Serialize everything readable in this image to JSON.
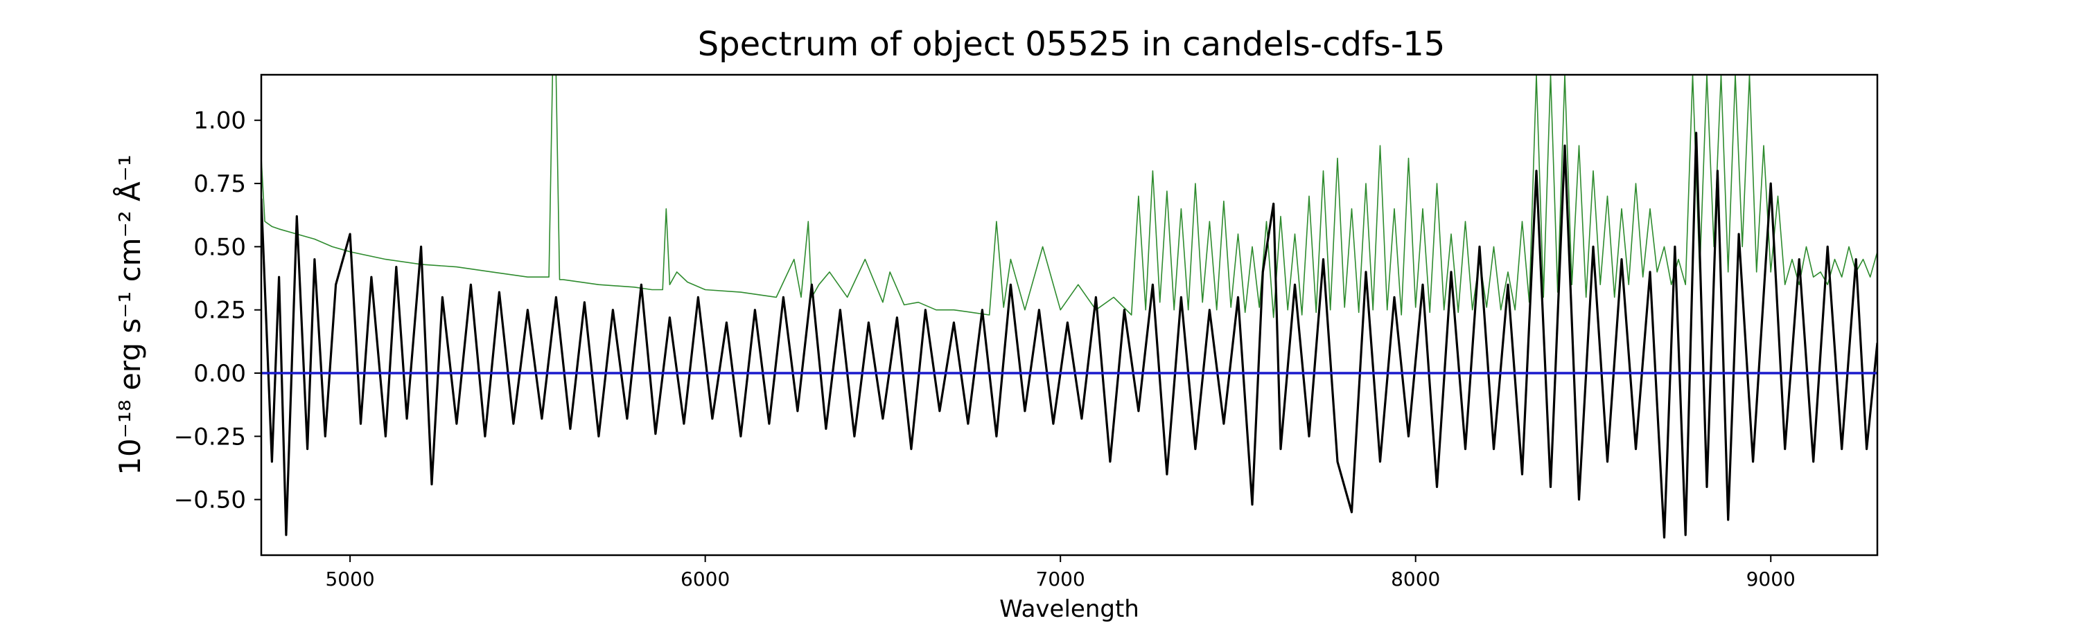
{
  "chart_data": {
    "type": "line",
    "title": "Spectrum of object 05525 in candels-cdfs-15",
    "xlabel": "Wavelength",
    "ylabel": "10⁻¹⁸ erg s⁻¹ cm⁻² Å⁻¹",
    "xlim": [
      4750,
      9300
    ],
    "ylim": [
      -0.72,
      1.18
    ],
    "xticks": [
      5000,
      6000,
      7000,
      8000,
      9000
    ],
    "xtick_labels": [
      "5000",
      "6000",
      "7000",
      "8000",
      "9000"
    ],
    "yticks": [
      -0.5,
      -0.25,
      0.0,
      0.25,
      0.5,
      0.75,
      1.0
    ],
    "ytick_labels": [
      "−0.50",
      "−0.25",
      "0.00",
      "0.25",
      "0.50",
      "0.75",
      "1.00"
    ],
    "grid": false,
    "legend": "none",
    "series": [
      {
        "role": "spectrum",
        "color": "#000000",
        "x": [
          4750,
          4780,
          4800,
          4820,
          4850,
          4880,
          4900,
          4930,
          4960,
          5000,
          5030,
          5060,
          5100,
          5130,
          5160,
          5200,
          5230,
          5260,
          5300,
          5340,
          5380,
          5420,
          5460,
          5500,
          5540,
          5580,
          5620,
          5660,
          5700,
          5740,
          5780,
          5820,
          5860,
          5900,
          5940,
          5980,
          6020,
          6060,
          6100,
          6140,
          6180,
          6220,
          6260,
          6300,
          6340,
          6380,
          6420,
          6460,
          6500,
          6540,
          6580,
          6620,
          6660,
          6700,
          6740,
          6780,
          6820,
          6860,
          6900,
          6940,
          6980,
          7020,
          7060,
          7100,
          7140,
          7180,
          7220,
          7260,
          7300,
          7340,
          7380,
          7420,
          7460,
          7500,
          7540,
          7570,
          7600,
          7620,
          7660,
          7700,
          7740,
          7780,
          7820,
          7860,
          7900,
          7940,
          7980,
          8020,
          8060,
          8100,
          8140,
          8180,
          8220,
          8260,
          8300,
          8340,
          8380,
          8420,
          8460,
          8500,
          8540,
          8580,
          8620,
          8660,
          8700,
          8730,
          8760,
          8790,
          8820,
          8850,
          8880,
          8910,
          8950,
          9000,
          9040,
          9080,
          9120,
          9160,
          9200,
          9240,
          9270,
          9300
        ],
        "y": [
          0.69,
          -0.35,
          0.38,
          -0.64,
          0.62,
          -0.3,
          0.45,
          -0.25,
          0.35,
          0.55,
          -0.2,
          0.38,
          -0.25,
          0.42,
          -0.18,
          0.5,
          -0.44,
          0.3,
          -0.2,
          0.35,
          -0.25,
          0.32,
          -0.2,
          0.25,
          -0.18,
          0.3,
          -0.22,
          0.28,
          -0.25,
          0.25,
          -0.18,
          0.35,
          -0.24,
          0.22,
          -0.2,
          0.3,
          -0.18,
          0.2,
          -0.25,
          0.25,
          -0.2,
          0.3,
          -0.15,
          0.35,
          -0.22,
          0.25,
          -0.25,
          0.2,
          -0.18,
          0.22,
          -0.3,
          0.25,
          -0.15,
          0.2,
          -0.2,
          0.25,
          -0.25,
          0.35,
          -0.15,
          0.25,
          -0.2,
          0.2,
          -0.18,
          0.3,
          -0.35,
          0.25,
          -0.15,
          0.35,
          -0.4,
          0.3,
          -0.3,
          0.25,
          -0.2,
          0.3,
          -0.52,
          0.4,
          0.67,
          -0.3,
          0.35,
          -0.25,
          0.45,
          -0.35,
          -0.55,
          0.4,
          -0.35,
          0.3,
          -0.25,
          0.35,
          -0.45,
          0.4,
          -0.3,
          0.5,
          -0.3,
          0.35,
          -0.4,
          0.8,
          -0.45,
          0.9,
          -0.5,
          0.5,
          -0.35,
          0.45,
          -0.3,
          0.4,
          -0.65,
          0.5,
          -0.64,
          0.95,
          -0.45,
          0.8,
          -0.58,
          0.55,
          -0.35,
          0.75,
          -0.3,
          0.45,
          -0.35,
          0.5,
          -0.3,
          0.45,
          -0.3,
          0.12
        ]
      },
      {
        "role": "model",
        "color": "#2e8b2e",
        "x": [
          4750,
          4760,
          4780,
          4800,
          4850,
          4900,
          4950,
          5000,
          5100,
          5200,
          5300,
          5400,
          5500,
          5560,
          5570,
          5580,
          5590,
          5600,
          5700,
          5800,
          5850,
          5880,
          5890,
          5900,
          5920,
          5950,
          6000,
          6100,
          6200,
          6250,
          6270,
          6290,
          6300,
          6320,
          6350,
          6400,
          6450,
          6500,
          6520,
          6560,
          6600,
          6650,
          6700,
          6750,
          6800,
          6820,
          6840,
          6860,
          6900,
          6950,
          7000,
          7050,
          7100,
          7150,
          7200,
          7220,
          7240,
          7260,
          7280,
          7300,
          7320,
          7340,
          7360,
          7380,
          7400,
          7420,
          7440,
          7460,
          7480,
          7500,
          7520,
          7540,
          7560,
          7580,
          7600,
          7620,
          7640,
          7660,
          7680,
          7700,
          7720,
          7740,
          7760,
          7780,
          7800,
          7820,
          7840,
          7860,
          7880,
          7900,
          7920,
          7940,
          7960,
          7980,
          8000,
          8020,
          8040,
          8060,
          8080,
          8100,
          8120,
          8140,
          8160,
          8180,
          8200,
          8220,
          8240,
          8260,
          8280,
          8300,
          8320,
          8340,
          8360,
          8380,
          8400,
          8420,
          8440,
          8460,
          8480,
          8500,
          8520,
          8540,
          8560,
          8580,
          8600,
          8620,
          8640,
          8660,
          8680,
          8700,
          8720,
          8740,
          8760,
          8780,
          8800,
          8820,
          8840,
          8860,
          8880,
          8900,
          8920,
          8940,
          8960,
          8980,
          9000,
          9020,
          9040,
          9060,
          9080,
          9100,
          9120,
          9140,
          9160,
          9180,
          9200,
          9220,
          9240,
          9260,
          9280,
          9300
        ],
        "y": [
          0.85,
          0.6,
          0.58,
          0.57,
          0.55,
          0.53,
          0.5,
          0.48,
          0.45,
          0.43,
          0.42,
          0.4,
          0.38,
          0.38,
          1.18,
          1.18,
          0.37,
          0.37,
          0.35,
          0.34,
          0.33,
          0.33,
          0.65,
          0.35,
          0.4,
          0.36,
          0.33,
          0.32,
          0.3,
          0.45,
          0.3,
          0.6,
          0.3,
          0.35,
          0.4,
          0.3,
          0.45,
          0.28,
          0.4,
          0.27,
          0.28,
          0.25,
          0.25,
          0.24,
          0.23,
          0.6,
          0.26,
          0.45,
          0.25,
          0.5,
          0.25,
          0.35,
          0.25,
          0.3,
          0.23,
          0.7,
          0.25,
          0.8,
          0.28,
          0.72,
          0.25,
          0.65,
          0.25,
          0.75,
          0.28,
          0.6,
          0.25,
          0.68,
          0.26,
          0.55,
          0.24,
          0.5,
          0.26,
          0.6,
          0.22,
          0.62,
          0.25,
          0.55,
          0.23,
          0.7,
          0.24,
          0.8,
          0.25,
          0.85,
          0.26,
          0.65,
          0.24,
          0.75,
          0.25,
          0.9,
          0.25,
          0.65,
          0.23,
          0.85,
          0.26,
          0.65,
          0.24,
          0.75,
          0.25,
          0.55,
          0.24,
          0.6,
          0.25,
          0.45,
          0.26,
          0.5,
          0.25,
          0.4,
          0.25,
          0.6,
          0.28,
          1.18,
          0.3,
          1.18,
          0.32,
          1.18,
          0.35,
          0.9,
          0.3,
          0.8,
          0.35,
          0.7,
          0.3,
          0.65,
          0.35,
          0.75,
          0.38,
          0.65,
          0.4,
          0.5,
          0.35,
          0.45,
          0.35,
          1.18,
          0.4,
          1.18,
          0.5,
          1.18,
          0.4,
          1.18,
          0.5,
          1.18,
          0.4,
          0.9,
          0.4,
          0.7,
          0.35,
          0.45,
          0.35,
          0.5,
          0.38,
          0.4,
          0.35,
          0.45,
          0.38,
          0.5,
          0.4,
          0.45,
          0.38,
          0.48
        ]
      },
      {
        "role": "zero-line",
        "color": "#1a1acc",
        "x": [
          4750,
          9300
        ],
        "y": [
          0,
          0
        ]
      }
    ]
  }
}
